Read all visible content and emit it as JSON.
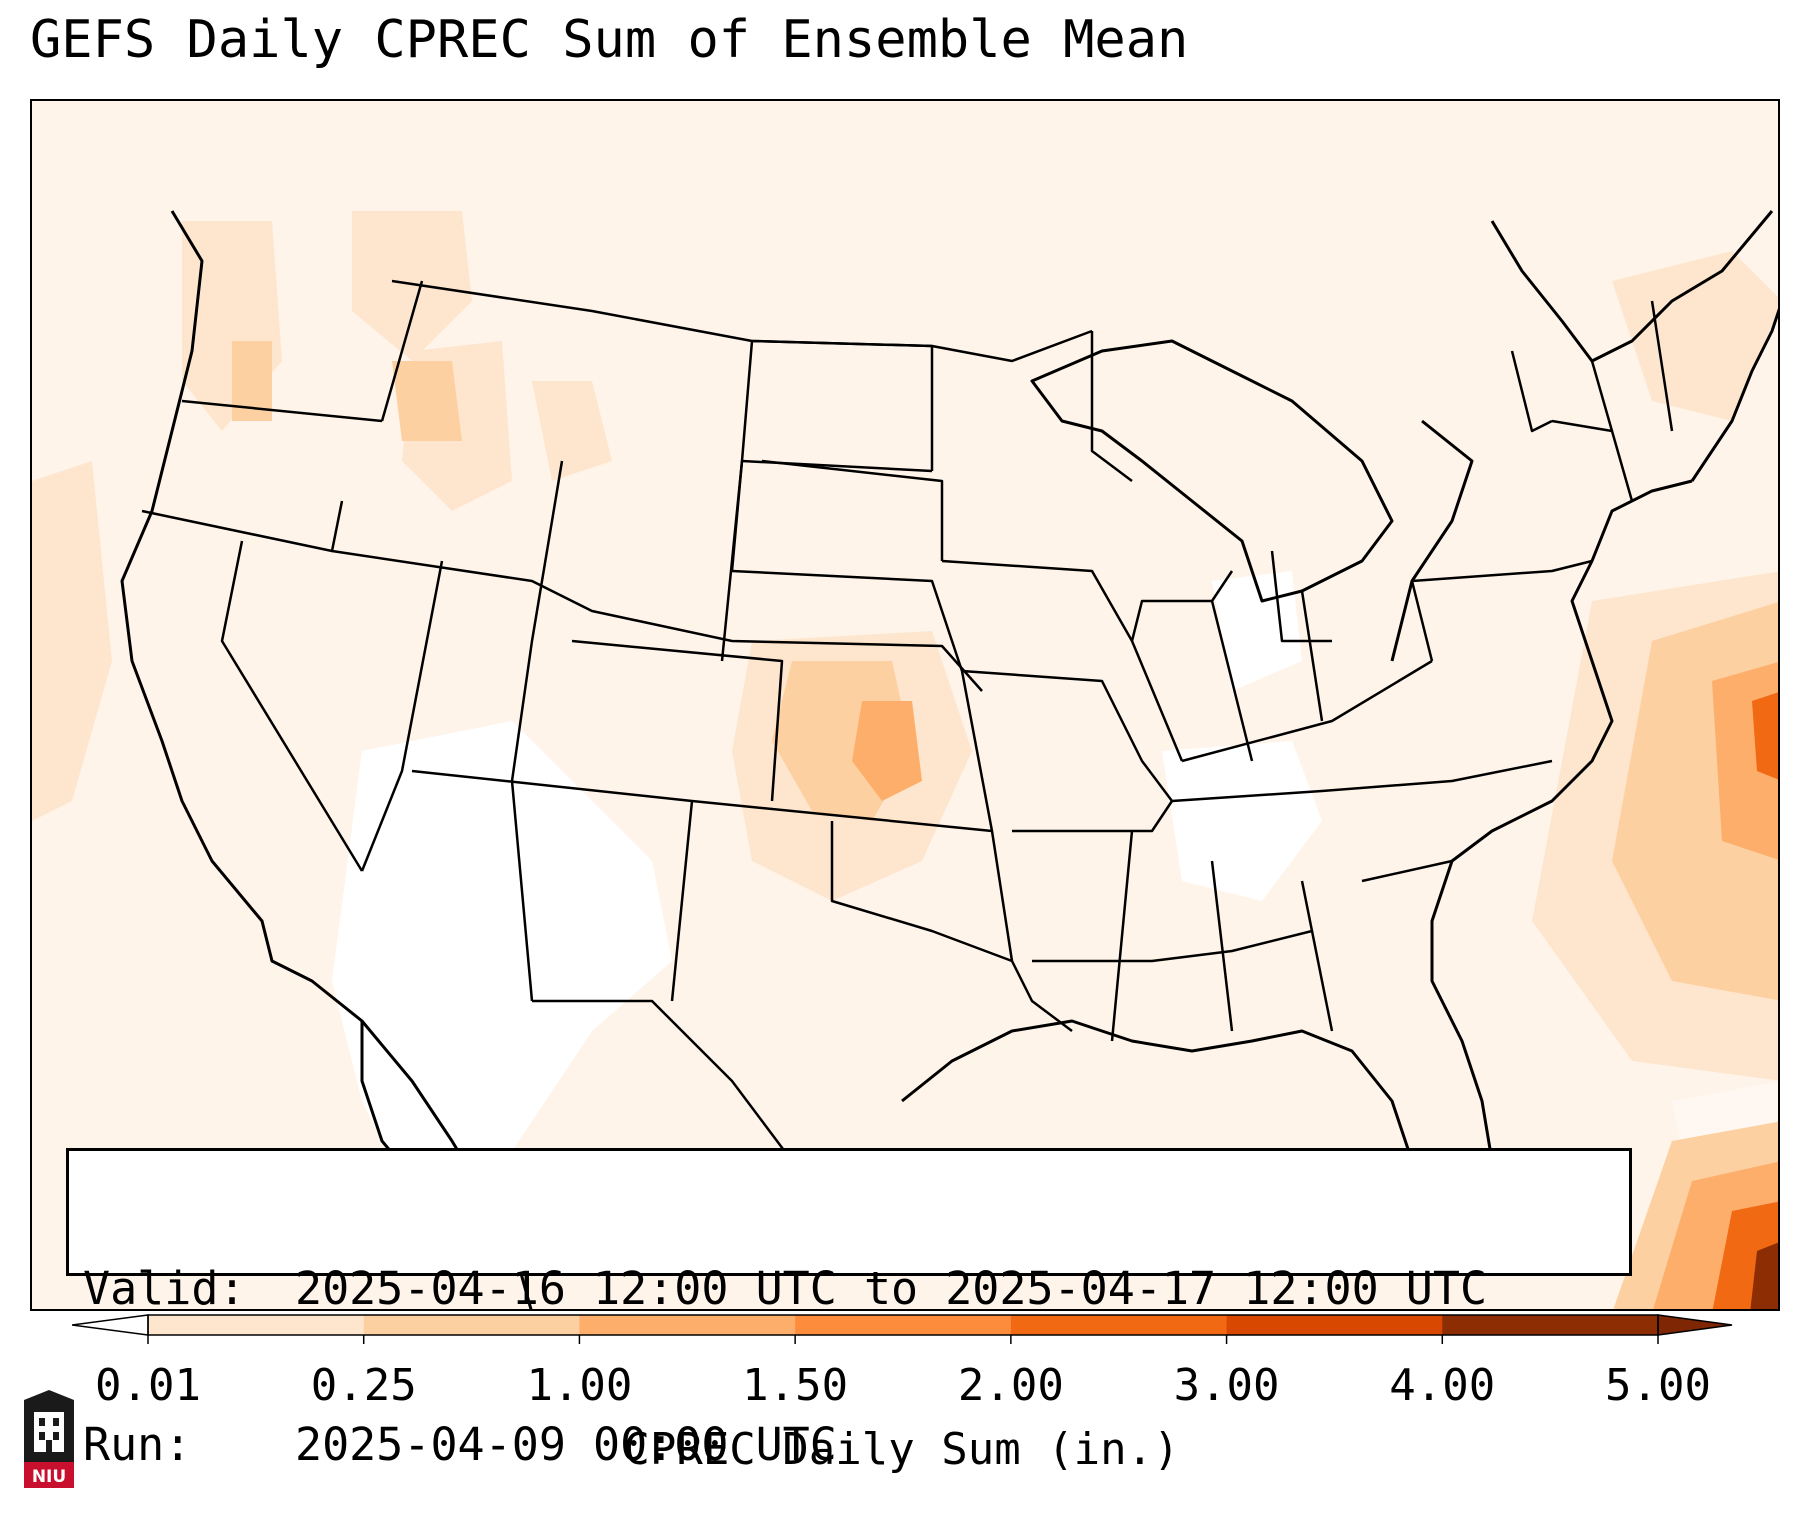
{
  "title": "GEFS Daily CPREC Sum of Ensemble Mean",
  "valid_box": {
    "valid_label": "Valid:",
    "valid_value": "2025-04-16 12:00 UTC to 2025-04-17 12:00 UTC",
    "run_label": "Run:",
    "run_value": "2025-04-09 00:00 UTC"
  },
  "colorbar": {
    "label": "CPREC Daily Sum (in.)",
    "ticks": [
      "0.01",
      "0.25",
      "1.00",
      "1.50",
      "2.00",
      "3.00",
      "4.00",
      "5.00"
    ],
    "colors": [
      "#fff5eb",
      "#fee6ce",
      "#fdd0a2",
      "#fdae6b",
      "#fd8d3c",
      "#f16913",
      "#d94801",
      "#8c2d04"
    ],
    "under_color": "#ffffff",
    "over_color": "#7f2704",
    "extend": "both"
  },
  "logo": {
    "text": "NIU",
    "colors": {
      "red": "#c8102e",
      "black": "#1a1a1a"
    }
  },
  "map": {
    "region": "Contiguous United States",
    "land_edge_color": "#000000",
    "max_region": "offshore southeast / Caribbean"
  }
}
